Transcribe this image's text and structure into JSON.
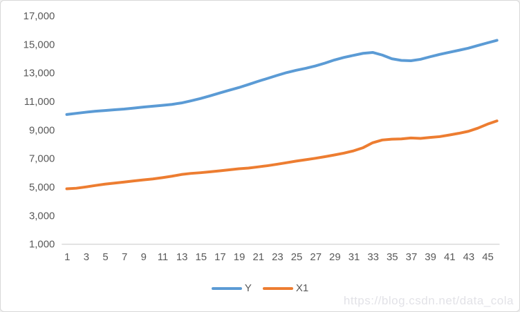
{
  "chart_data": {
    "type": "line",
    "title": "",
    "xlabel": "",
    "ylabel": "",
    "grid": false,
    "legend_position": "bottom",
    "ylim": [
      1000,
      17000
    ],
    "ytick_values": [
      1000,
      3000,
      5000,
      7000,
      9000,
      11000,
      13000,
      15000,
      17000
    ],
    "ytick_labels": [
      "1,000",
      "3,000",
      "5,000",
      "7,000",
      "9,000",
      "11,000",
      "13,000",
      "15,000",
      "17,000"
    ],
    "xtick_values": [
      1,
      3,
      5,
      7,
      9,
      11,
      13,
      15,
      17,
      19,
      21,
      23,
      25,
      27,
      29,
      31,
      33,
      35,
      37,
      39,
      41,
      43,
      45
    ],
    "xtick_labels": [
      "1",
      "3",
      "5",
      "7",
      "9",
      "11",
      "13",
      "15",
      "17",
      "19",
      "21",
      "23",
      "25",
      "27",
      "29",
      "31",
      "33",
      "35",
      "37",
      "39",
      "41",
      "43",
      "45"
    ],
    "x": [
      1,
      2,
      3,
      4,
      5,
      6,
      7,
      8,
      9,
      10,
      11,
      12,
      13,
      14,
      15,
      16,
      17,
      18,
      19,
      20,
      21,
      22,
      23,
      24,
      25,
      26,
      27,
      28,
      29,
      30,
      31,
      32,
      33,
      34,
      35,
      36,
      37,
      38,
      39,
      40,
      41,
      42,
      43,
      44,
      45,
      46
    ],
    "series": [
      {
        "name": "Y",
        "color": "#5B9BD5",
        "values": [
          10080,
          10160,
          10240,
          10310,
          10360,
          10410,
          10460,
          10530,
          10600,
          10660,
          10720,
          10790,
          10890,
          11040,
          11200,
          11390,
          11590,
          11780,
          11970,
          12180,
          12400,
          12610,
          12820,
          13020,
          13180,
          13320,
          13480,
          13680,
          13900,
          14080,
          14230,
          14370,
          14430,
          14250,
          13990,
          13870,
          13850,
          13950,
          14130,
          14290,
          14440,
          14580,
          14730,
          14920,
          15100,
          15280
        ]
      },
      {
        "name": "X1",
        "color": "#ED7D31",
        "values": [
          4870,
          4910,
          5000,
          5100,
          5200,
          5270,
          5340,
          5420,
          5490,
          5560,
          5650,
          5750,
          5870,
          5950,
          6000,
          6060,
          6130,
          6200,
          6270,
          6320,
          6400,
          6490,
          6590,
          6700,
          6810,
          6910,
          7010,
          7120,
          7240,
          7370,
          7530,
          7750,
          8100,
          8290,
          8350,
          8370,
          8430,
          8400,
          8470,
          8530,
          8640,
          8760,
          8900,
          9120,
          9400,
          9630
        ]
      }
    ]
  },
  "legend": {
    "y_label": "Y",
    "x1_label": "X1"
  },
  "watermark": {
    "text": "https://blog.csdn.net/data_cola"
  },
  "colors": {
    "series_y": "#5B9BD5",
    "series_x1": "#ED7D31",
    "axis_text": "#595959",
    "axis_line": "#D9D9D9",
    "border": "#D7D7D7",
    "watermark": "#E2E2E7",
    "background": "#FFFFFF"
  }
}
